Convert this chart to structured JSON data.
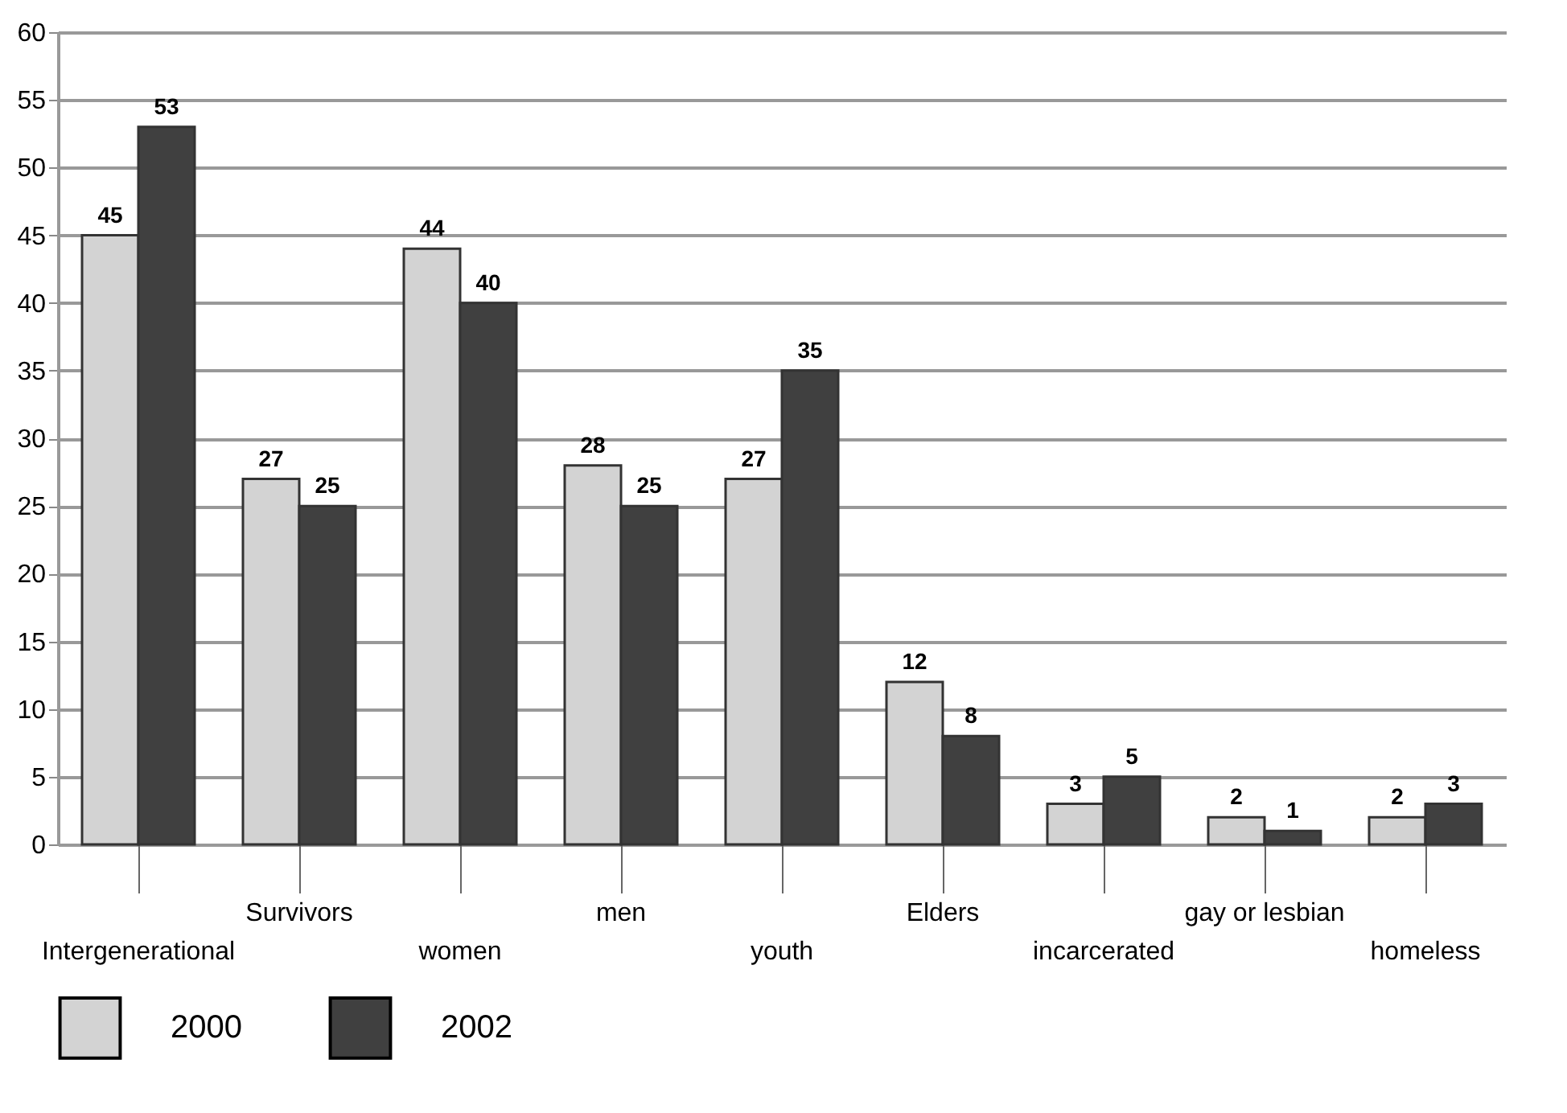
{
  "chart_data": {
    "type": "bar",
    "categories": [
      "Intergenerational",
      "Survivors",
      "women",
      "men",
      "youth",
      "Elders",
      "incarcerated",
      "gay or lesbian",
      "homeless"
    ],
    "series": [
      {
        "name": "2000",
        "color": "#d3d3d3",
        "values": [
          45,
          27,
          44,
          28,
          27,
          12,
          3,
          2,
          2
        ]
      },
      {
        "name": "2002",
        "color": "#404040",
        "values": [
          53,
          25,
          40,
          25,
          35,
          8,
          5,
          1,
          3
        ]
      }
    ],
    "ylim": [
      0,
      60
    ],
    "yticks": [
      0,
      5,
      10,
      15,
      20,
      25,
      30,
      35,
      40,
      45,
      50,
      55,
      60
    ],
    "grid": "y",
    "legend": "bottom",
    "data_labels": true
  }
}
